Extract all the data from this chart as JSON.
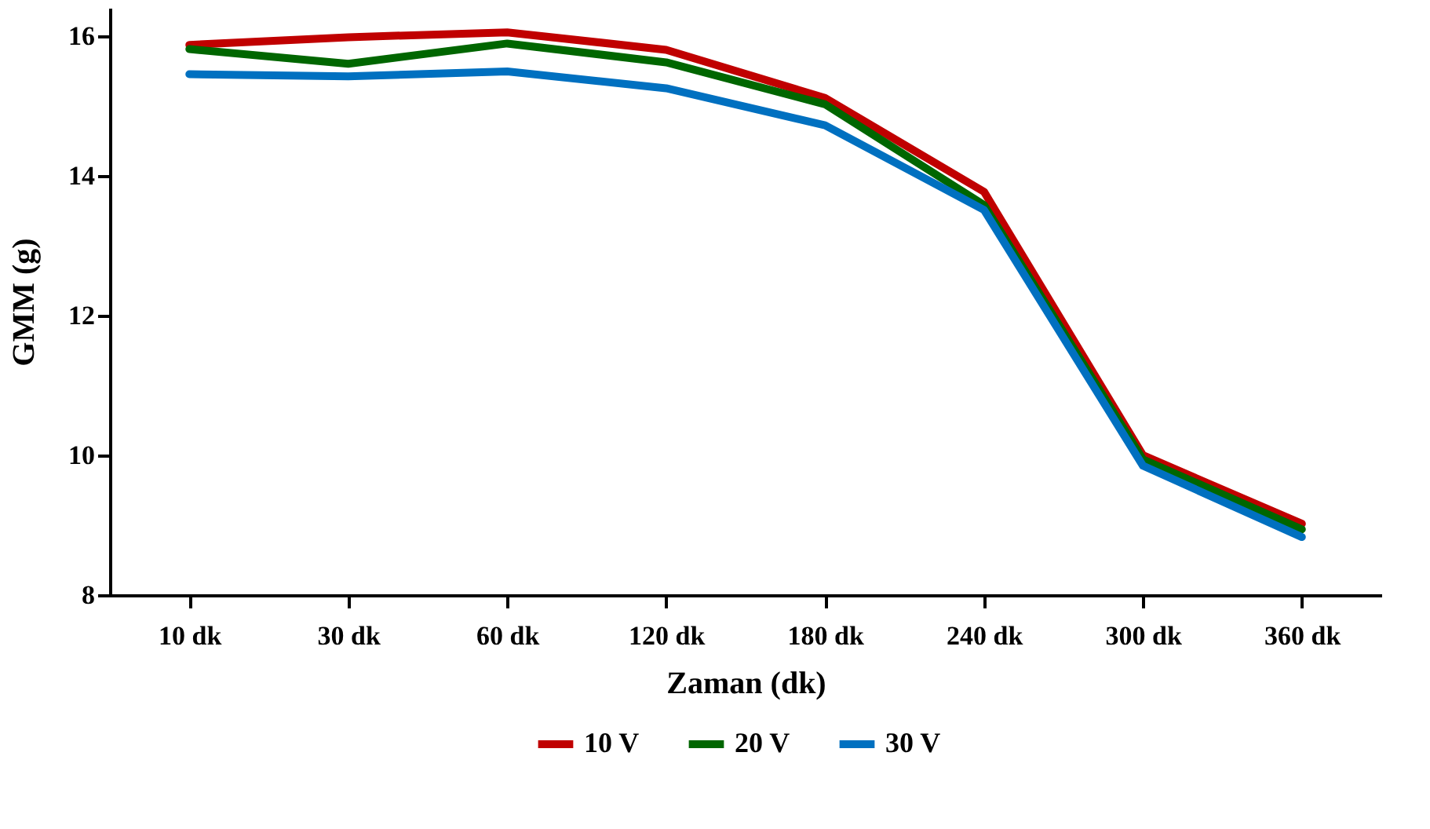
{
  "chart_data": {
    "type": "line",
    "xlabel": "Zaman (dk)",
    "ylabel": "GMM (g)",
    "categories": [
      "10 dk",
      "30 dk",
      "60 dk",
      "120 dk",
      "180 dk",
      "240 dk",
      "300 dk",
      "360 dk"
    ],
    "series": [
      {
        "name": "10 V",
        "color": "#c00000",
        "values": [
          15.87,
          15.98,
          16.05,
          15.8,
          15.11,
          13.77,
          10.0,
          9.02
        ]
      },
      {
        "name": "20 V",
        "color": "#006600",
        "values": [
          15.81,
          15.6,
          15.89,
          15.62,
          15.02,
          13.58,
          9.94,
          8.94
        ]
      },
      {
        "name": "30 V",
        "color": "#0070c0",
        "values": [
          15.45,
          15.42,
          15.49,
          15.25,
          14.72,
          13.51,
          9.85,
          8.83
        ]
      }
    ],
    "ylim": [
      8,
      16.4
    ],
    "yticks": [
      8,
      10,
      12,
      14,
      16
    ],
    "grid": false,
    "legend": "bottom",
    "marker": "none",
    "line_style": "solid"
  }
}
